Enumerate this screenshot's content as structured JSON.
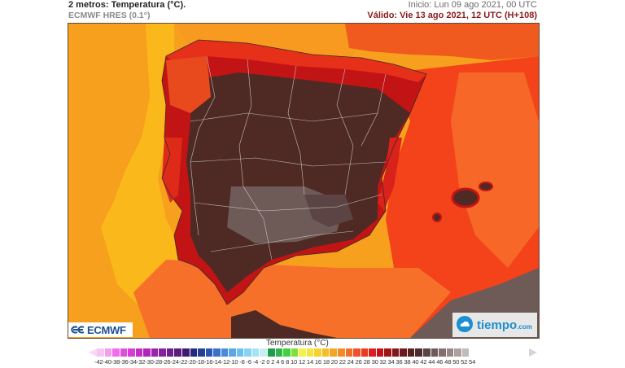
{
  "header": {
    "title": "2 metros: Temperatura (°C).",
    "model": "ECMWF HRES (0.1°)",
    "init": "Inicio: Lun 09 ago 2021, 00 UTC",
    "valid": "Válido: Vie 13 ago 2021, 12 UTC (H+108)"
  },
  "map": {
    "region": "Península Ibérica y Baleares",
    "variable": "Temperatura a 2 metros",
    "colors": {
      "atlantic_far": "#f7a01d",
      "atlantic_near": "#fbb81a",
      "mediterranean": "#f4421a",
      "alboran": "#f7702a",
      "land_hot": "#4f2a24",
      "land_very_hot": "#6e5a57",
      "land_warm": "#c21414",
      "coast_cooler": "#e6301a",
      "france": "#f05a1e",
      "borders": "#d9d9d9"
    }
  },
  "logos": {
    "left": "ECMWF",
    "right_main": "tiempo",
    "right_suffix": ".com"
  },
  "legend": {
    "title": "Temperatura (°C)",
    "labels": "-42-40-38-36-34-32-30-28-26-24-22-20-18-16-14-12-10 -8  -6  -4  -2  0  2  4  6  8  10 12 14 16 18 20 22 24 26 28 30 32 34 36 38 40 42 44 46 48 50 52 54",
    "ticks": [
      -42,
      -40,
      -38,
      -36,
      -34,
      -32,
      -30,
      -28,
      -26,
      -24,
      -22,
      -20,
      -18,
      -16,
      -14,
      -12,
      -10,
      -8,
      -6,
      -4,
      -2,
      0,
      2,
      4,
      6,
      8,
      10,
      12,
      14,
      16,
      18,
      20,
      22,
      24,
      26,
      28,
      30,
      32,
      34,
      36,
      38,
      40,
      42,
      44,
      46,
      48,
      50,
      52,
      54
    ],
    "colors": [
      "#f6c6f3",
      "#f49cf0",
      "#ee6fe9",
      "#e24de0",
      "#d83bd6",
      "#c52dc4",
      "#b026b8",
      "#9a22ad",
      "#8420a0",
      "#6f1c90",
      "#5a1a7e",
      "#40186c",
      "#1e2b7e",
      "#243e9a",
      "#2c55b5",
      "#3a6fcb",
      "#4a8ada",
      "#5aa6e6",
      "#6cc0ef",
      "#86d4f3",
      "#a7e3f6",
      "#c6eef7",
      "#1f9e4a",
      "#2fb84a",
      "#44d03f",
      "#7ee03a",
      "#f2f24a",
      "#f6e43a",
      "#f6d22e",
      "#f5bd26",
      "#f4a523",
      "#f38a26",
      "#f16f28",
      "#ee5427",
      "#e83a24",
      "#dc1f1e",
      "#c2121a",
      "#a01418",
      "#83171c",
      "#6a1a1e",
      "#55211f",
      "#4c2c2c",
      "#5c4444",
      "#6f5959",
      "#836f6f",
      "#978787",
      "#aca0a0",
      "#c1baba"
    ]
  }
}
